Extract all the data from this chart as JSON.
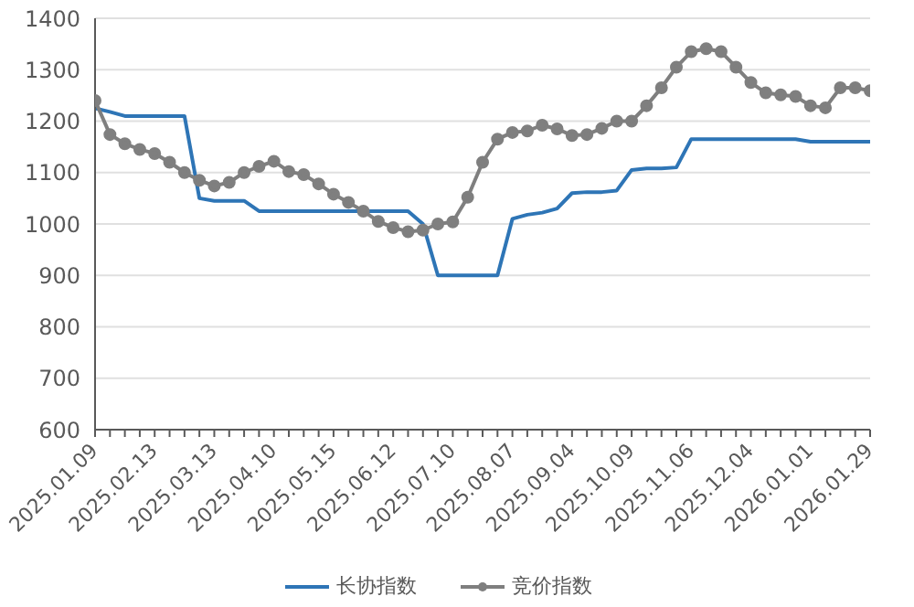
{
  "chart_data": {
    "type": "line",
    "categories": [
      "2025.01.09",
      null,
      null,
      null,
      "2025.02.13",
      null,
      null,
      null,
      "2025.03.13",
      null,
      null,
      null,
      "2025.04.10",
      null,
      null,
      null,
      "2025.05.15",
      null,
      null,
      null,
      "2025.06.12",
      null,
      null,
      null,
      "2025.07.10",
      null,
      null,
      null,
      "2025.08.07",
      null,
      null,
      null,
      "2025.09.04",
      null,
      null,
      null,
      "2025.10.09",
      null,
      null,
      null,
      "2025.11.06",
      null,
      null,
      null,
      "2025.12.04",
      null,
      null,
      null,
      "2026.01.01",
      null,
      null,
      null,
      "2026.01.29"
    ],
    "series": [
      {
        "name": "长协指数",
        "color": "#2e75b6",
        "marker": "none",
        "values": [
          1225,
          1218,
          1210,
          1210,
          1210,
          1210,
          1210,
          1050,
          1045,
          1045,
          1045,
          1025,
          1025,
          1025,
          1025,
          1025,
          1025,
          1025,
          1025,
          1025,
          1025,
          1025,
          1000,
          900,
          900,
          900,
          900,
          900,
          1010,
          1018,
          1022,
          1030,
          1060,
          1062,
          1062,
          1065,
          1105,
          1108,
          1108,
          1110,
          1165,
          1165,
          1165,
          1165,
          1165,
          1165,
          1165,
          1165,
          1160,
          1160,
          1160,
          1160,
          1160
        ]
      },
      {
        "name": "竞价指数",
        "color": "#7f7f7f",
        "marker": "circle",
        "values": [
          1240,
          1174,
          1156,
          1145,
          1137,
          1120,
          1100,
          1085,
          1074,
          1081,
          1100,
          1112,
          1122,
          1102,
          1096,
          1078,
          1058,
          1042,
          1025,
          1005,
          993,
          985,
          988,
          1000,
          1004,
          1052,
          1120,
          1165,
          1178,
          1181,
          1192,
          1185,
          1172,
          1174,
          1186,
          1200,
          1200,
          1230,
          1265,
          1305,
          1335,
          1341,
          1335,
          1305,
          1275,
          1255,
          1251,
          1248,
          1230,
          1226,
          1265,
          1265,
          1259
        ]
      }
    ],
    "ylim": [
      600,
      1400
    ],
    "yticks": [
      600,
      700,
      800,
      900,
      1000,
      1100,
      1200,
      1300,
      1400
    ],
    "grid": "y",
    "legend": "bottom"
  }
}
